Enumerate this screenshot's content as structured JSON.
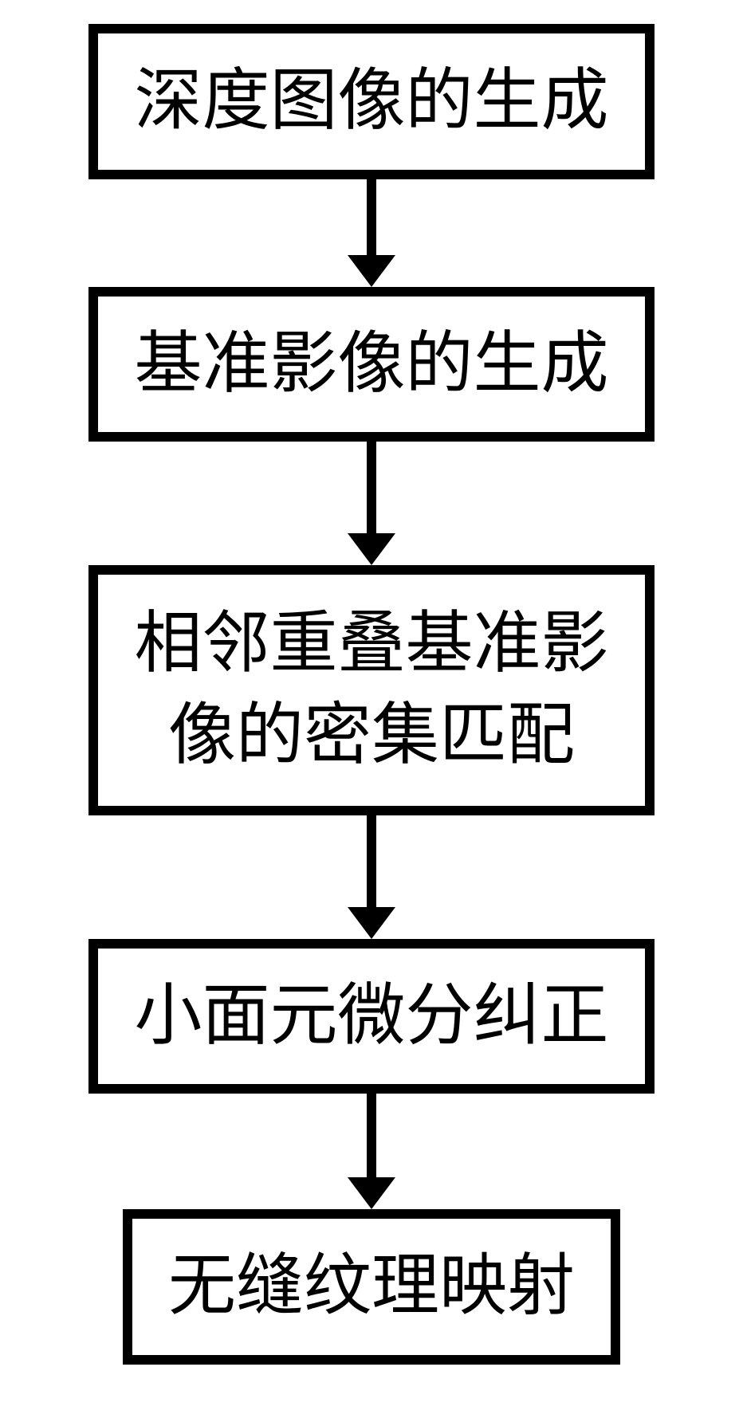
{
  "flowchart": {
    "type": "flowchart",
    "direction": "vertical",
    "background_color": "#ffffff",
    "nodes": [
      {
        "id": "node1",
        "label": "深度图像的生成",
        "border_color": "#000000",
        "border_width": 12,
        "bg_color": "#ffffff",
        "text_color": "#000000",
        "font_size": 85,
        "multiline": false,
        "arrow_line_height": 95
      },
      {
        "id": "node2",
        "label": "基准影像的生成",
        "border_color": "#000000",
        "border_width": 12,
        "bg_color": "#ffffff",
        "text_color": "#000000",
        "font_size": 85,
        "multiline": false,
        "arrow_line_height": 115
      },
      {
        "id": "node3",
        "label": "相邻重叠基准影\n像的密集匹配",
        "border_color": "#000000",
        "border_width": 12,
        "bg_color": "#ffffff",
        "text_color": "#000000",
        "font_size": 85,
        "multiline": true,
        "arrow_line_height": 115
      },
      {
        "id": "node4",
        "label": "小面元微分纠正",
        "border_color": "#000000",
        "border_width": 12,
        "bg_color": "#ffffff",
        "text_color": "#000000",
        "font_size": 85,
        "multiline": false,
        "arrow_line_height": 105
      },
      {
        "id": "node5",
        "label": "无缝纹理映射",
        "border_color": "#000000",
        "border_width": 12,
        "bg_color": "#ffffff",
        "text_color": "#000000",
        "font_size": 85,
        "multiline": false,
        "arrow_line_height": 0
      }
    ],
    "edges": [
      {
        "from": "node1",
        "to": "node2",
        "color": "#000000",
        "line_width": 12,
        "arrow_size": 40
      },
      {
        "from": "node2",
        "to": "node3",
        "color": "#000000",
        "line_width": 12,
        "arrow_size": 40
      },
      {
        "from": "node3",
        "to": "node4",
        "color": "#000000",
        "line_width": 12,
        "arrow_size": 40
      },
      {
        "from": "node4",
        "to": "node5",
        "color": "#000000",
        "line_width": 12,
        "arrow_size": 40
      }
    ]
  }
}
